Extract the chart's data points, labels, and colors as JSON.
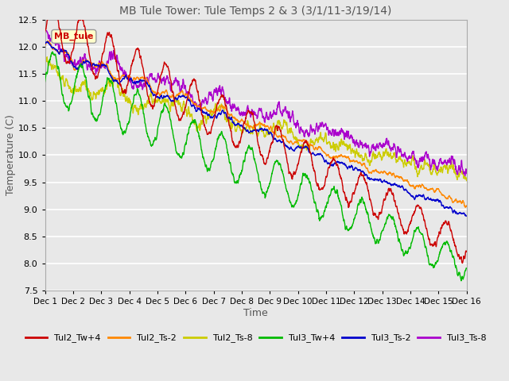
{
  "title": "MB Tule Tower: Tule Temps 2 & 3 (3/1/11-3/19/14)",
  "xlabel": "Time",
  "ylabel": "Temperature (C)",
  "ylim": [
    7.5,
    12.5
  ],
  "yticks": [
    7.5,
    8.0,
    8.5,
    9.0,
    9.5,
    10.0,
    10.5,
    11.0,
    11.5,
    12.0,
    12.5
  ],
  "xtick_labels": [
    "Dec 1",
    "Dec 2",
    "Dec 3",
    "Dec 4",
    "Dec 5",
    "Dec 6",
    "Dec 7",
    "Dec 8",
    "Dec 9",
    "Dec 10",
    "Dec 11",
    "Dec 12",
    "Dec 13",
    "Dec 14",
    "Dec 15",
    "Dec 16"
  ],
  "annotation_text": "MB_tule",
  "series": {
    "Tul2_Tw+4": {
      "color": "#cc0000",
      "lw": 1.0
    },
    "Tul2_Ts-2": {
      "color": "#ff8800",
      "lw": 1.0
    },
    "Tul2_Ts-8": {
      "color": "#cccc00",
      "lw": 1.0
    },
    "Tul3_Tw+4": {
      "color": "#00bb00",
      "lw": 1.0
    },
    "Tul3_Ts-2": {
      "color": "#0000cc",
      "lw": 1.0
    },
    "Tul3_Ts-8": {
      "color": "#aa00cc",
      "lw": 1.0
    }
  },
  "bg_color": "#e8e8e8",
  "grid_color": "#ffffff"
}
